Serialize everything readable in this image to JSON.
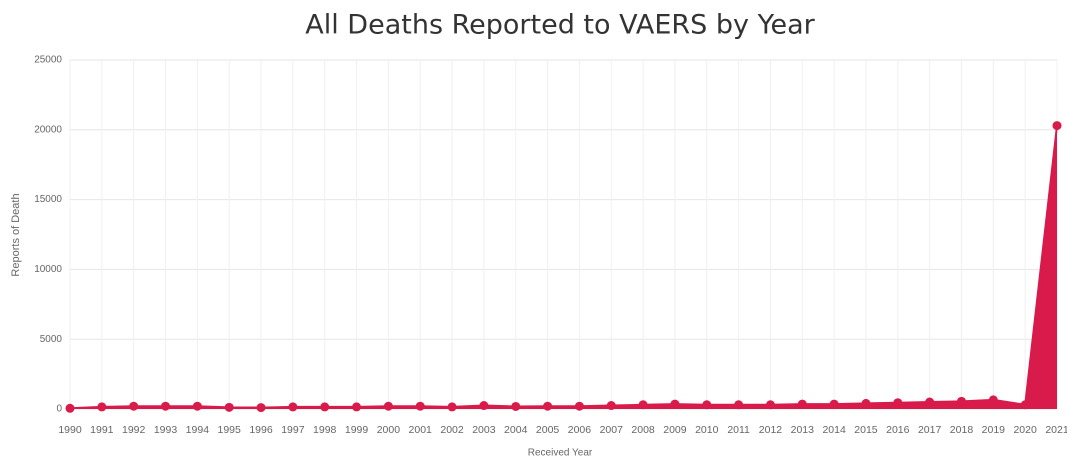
{
  "chart_data": {
    "type": "area",
    "title": "All Deaths Reported to VAERS by Year",
    "x_label": "Received Year",
    "y_label": "Reports of Death",
    "categories": [
      "1990",
      "1991",
      "1992",
      "1993",
      "1994",
      "1995",
      "1996",
      "1997",
      "1998",
      "1999",
      "2000",
      "2001",
      "2002",
      "2003",
      "2004",
      "2005",
      "2006",
      "2007",
      "2008",
      "2009",
      "2010",
      "2011",
      "2012",
      "2013",
      "2014",
      "2015",
      "2016",
      "2017",
      "2018",
      "2019",
      "2020",
      "2021"
    ],
    "series": [
      {
        "name": "Reports of Death",
        "color": "#d81b4a",
        "values": [
          50,
          150,
          200,
          200,
          200,
          120,
          100,
          150,
          150,
          150,
          200,
          200,
          150,
          250,
          180,
          200,
          200,
          250,
          300,
          350,
          300,
          300,
          300,
          350,
          350,
          400,
          450,
          500,
          550,
          650,
          300,
          20300
        ]
      }
    ],
    "ylim": [
      0,
      25000
    ],
    "yticks": [
      0,
      5000,
      10000,
      15000,
      20000,
      25000
    ],
    "grid": true
  }
}
